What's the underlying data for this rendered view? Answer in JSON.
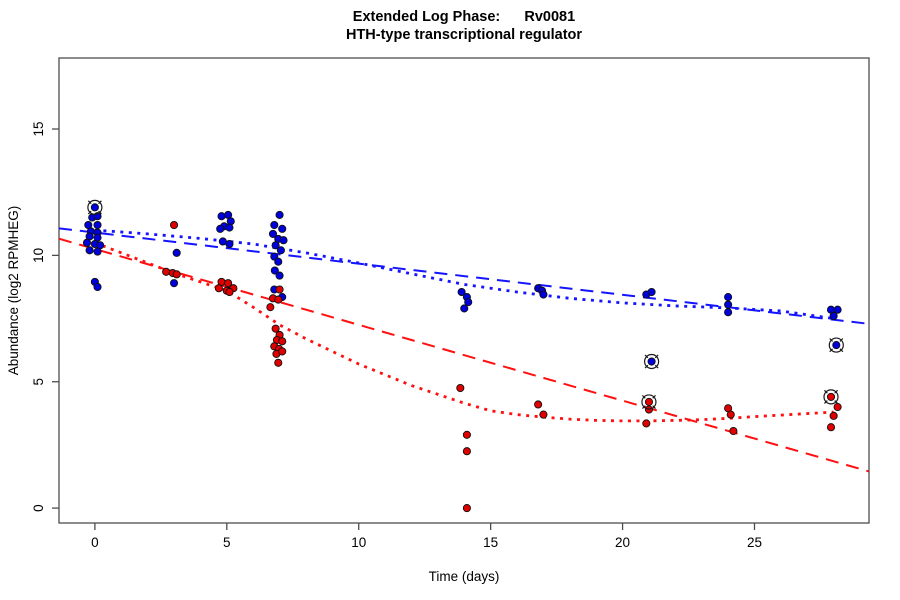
{
  "title": {
    "line1": "Extended Log Phase:      Rv0081",
    "line2": "HTH-type transcriptional regulator"
  },
  "chart_data": {
    "type": "scatter",
    "title": "Extended Log Phase:      Rv0081",
    "subtitle": "HTH-type transcriptional regulator",
    "xlabel": "Time  (days)",
    "ylabel": "Abundance  (log2 RPMHEG)",
    "xlim": [
      -1.36,
      29.34
    ],
    "ylim": [
      -0.59,
      17.81
    ],
    "x_ticks": [
      0,
      5,
      10,
      15,
      20,
      25
    ],
    "y_ticks": [
      0,
      5,
      10,
      15
    ],
    "grid": false,
    "legend": "none",
    "colors": {
      "series_blue": "#0000dd",
      "series_red": "#e10000",
      "line_blue": "#1414ff",
      "line_red": "#ff0f0f",
      "axis": "#4d4d4d",
      "outlier_ring": "#1a1a1a"
    },
    "series": [
      {
        "name": "condition-blue",
        "color": "#0000dd",
        "points": [
          [
            0,
            11.9
          ],
          [
            -0.1,
            11.5
          ],
          [
            0.1,
            11.55
          ],
          [
            -0.25,
            11.2
          ],
          [
            0.1,
            11.2
          ],
          [
            -0.15,
            10.95
          ],
          [
            0.1,
            10.9
          ],
          [
            -0.2,
            10.75
          ],
          [
            0.1,
            10.7
          ],
          [
            -0.3,
            10.5
          ],
          [
            0,
            10.45
          ],
          [
            0.2,
            10.4
          ],
          [
            -0.2,
            10.2
          ],
          [
            0.1,
            10.15
          ],
          [
            0,
            8.95
          ],
          [
            0.1,
            8.75
          ],
          [
            3.1,
            10.1
          ],
          [
            3,
            8.9
          ],
          [
            4.8,
            11.55
          ],
          [
            5.05,
            11.6
          ],
          [
            5.15,
            11.35
          ],
          [
            4.9,
            11.15
          ],
          [
            4.75,
            11.05
          ],
          [
            5.1,
            11.1
          ],
          [
            4.85,
            10.55
          ],
          [
            5.1,
            10.45
          ],
          [
            5.05,
            8.6
          ],
          [
            7,
            11.6
          ],
          [
            6.8,
            11.2
          ],
          [
            7.1,
            11.05
          ],
          [
            6.75,
            10.85
          ],
          [
            6.95,
            10.65
          ],
          [
            7.15,
            10.6
          ],
          [
            6.85,
            10.4
          ],
          [
            7.05,
            10.2
          ],
          [
            6.8,
            9.95
          ],
          [
            6.95,
            9.75
          ],
          [
            6.82,
            9.4
          ],
          [
            7,
            9.2
          ],
          [
            6.8,
            8.65
          ],
          [
            7.1,
            8.35
          ],
          [
            13.9,
            8.55
          ],
          [
            14.1,
            8.35
          ],
          [
            14.15,
            8.15
          ],
          [
            14,
            7.9
          ],
          [
            16.8,
            8.7
          ],
          [
            16.95,
            8.6
          ],
          [
            17,
            8.45
          ],
          [
            20.9,
            8.45
          ],
          [
            21.1,
            8.55
          ],
          [
            21.1,
            5.8
          ],
          [
            24,
            8.35
          ],
          [
            24,
            8.05
          ],
          [
            24,
            7.75
          ],
          [
            27.9,
            7.85
          ],
          [
            28.15,
            7.85
          ],
          [
            28,
            7.6
          ],
          [
            28.1,
            6.45
          ]
        ],
        "circled_points": [
          [
            0,
            11.9
          ],
          [
            21.1,
            5.8
          ],
          [
            28.1,
            6.45
          ]
        ]
      },
      {
        "name": "condition-red",
        "color": "#e10000",
        "points": [
          [
            3,
            11.2
          ],
          [
            2.7,
            9.35
          ],
          [
            2.95,
            9.3
          ],
          [
            3.1,
            9.25
          ],
          [
            4.8,
            8.95
          ],
          [
            5.05,
            8.9
          ],
          [
            4.7,
            8.7
          ],
          [
            5,
            8.6
          ],
          [
            5.25,
            8.7
          ],
          [
            5.1,
            8.55
          ],
          [
            7,
            8.65
          ],
          [
            6.75,
            8.3
          ],
          [
            6.95,
            8.25
          ],
          [
            6.65,
            7.95
          ],
          [
            6.85,
            7.1
          ],
          [
            7,
            6.85
          ],
          [
            6.9,
            6.65
          ],
          [
            7.1,
            6.6
          ],
          [
            6.8,
            6.4
          ],
          [
            6.98,
            6.3
          ],
          [
            6.88,
            6.1
          ],
          [
            7.1,
            6.2
          ],
          [
            6.95,
            5.75
          ],
          [
            13.85,
            4.75
          ],
          [
            14.1,
            2.9
          ],
          [
            14.1,
            2.25
          ],
          [
            14.1,
            0
          ],
          [
            16.8,
            4.1
          ],
          [
            17,
            3.7
          ],
          [
            21,
            4.2
          ],
          [
            21,
            3.9
          ],
          [
            20.9,
            3.35
          ],
          [
            24,
            3.95
          ],
          [
            24.1,
            3.7
          ],
          [
            24.2,
            3.05
          ],
          [
            27.9,
            4.4
          ],
          [
            28.15,
            4.0
          ],
          [
            28,
            3.65
          ],
          [
            27.9,
            3.2
          ]
        ],
        "circled_points": [
          [
            21,
            4.2
          ],
          [
            27.9,
            4.4
          ]
        ]
      }
    ],
    "lines": [
      {
        "name": "blue-linear-fit",
        "style": "dashed",
        "color": "#1414ff",
        "points": [
          [
            -1.36,
            11.07
          ],
          [
            29.34,
            7.29
          ]
        ]
      },
      {
        "name": "red-linear-fit",
        "style": "dashed",
        "color": "#ff0f0f",
        "points": [
          [
            -1.36,
            10.66
          ],
          [
            29.34,
            1.45
          ]
        ]
      },
      {
        "name": "blue-smooth-fit",
        "style": "dotted",
        "color": "#1414ff",
        "points": [
          [
            0,
            11.0
          ],
          [
            2,
            10.85
          ],
          [
            4,
            10.67
          ],
          [
            6,
            10.45
          ],
          [
            8,
            10.1
          ],
          [
            10,
            9.7
          ],
          [
            12,
            9.27
          ],
          [
            14,
            8.85
          ],
          [
            16,
            8.55
          ],
          [
            18,
            8.3
          ],
          [
            20,
            8.12
          ],
          [
            22,
            8.0
          ],
          [
            24,
            7.92
          ],
          [
            26,
            7.8
          ],
          [
            28,
            7.5
          ]
        ]
      },
      {
        "name": "red-smooth-fit",
        "style": "dotted",
        "color": "#ff0f0f",
        "points": [
          [
            0,
            10.5
          ],
          [
            1,
            10.1
          ],
          [
            2,
            9.7
          ],
          [
            3,
            9.3
          ],
          [
            4,
            8.95
          ],
          [
            5,
            8.6
          ],
          [
            6,
            7.95
          ],
          [
            7,
            7.25
          ],
          [
            8,
            6.7
          ],
          [
            10,
            5.7
          ],
          [
            12,
            4.85
          ],
          [
            14,
            4.15
          ],
          [
            15,
            3.85
          ],
          [
            16,
            3.7
          ],
          [
            17,
            3.6
          ],
          [
            18,
            3.52
          ],
          [
            19,
            3.47
          ],
          [
            20,
            3.45
          ],
          [
            21,
            3.45
          ],
          [
            22,
            3.47
          ],
          [
            23,
            3.5
          ],
          [
            24,
            3.55
          ],
          [
            25,
            3.62
          ],
          [
            26,
            3.68
          ],
          [
            27,
            3.74
          ],
          [
            28,
            3.8
          ]
        ]
      }
    ]
  }
}
